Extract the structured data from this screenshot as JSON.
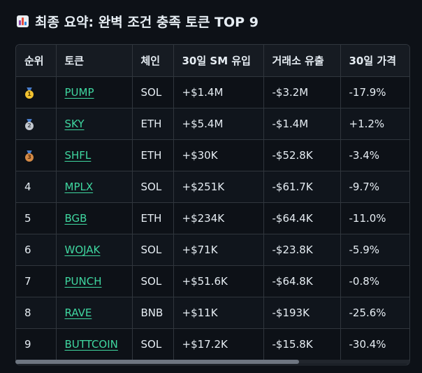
{
  "heading": {
    "icon": "bar-chart-icon",
    "text": "최종 요약: 완벽 조건 충족 토큰 TOP 9"
  },
  "table": {
    "headers": [
      "순위",
      "토큰",
      "체인",
      "30일 SM 유입",
      "거래소 유출",
      "30일 가격"
    ],
    "rows": [
      {
        "rank": "1",
        "medal": "gold",
        "token": "PUMP",
        "chain": "SOL",
        "sm_inflow": "+$1.4M",
        "exchange_outflow": "-$3.2M",
        "price_30d": "-17.9%"
      },
      {
        "rank": "2",
        "medal": "silver",
        "token": "SKY",
        "chain": "ETH",
        "sm_inflow": "+$5.4M",
        "exchange_outflow": "-$1.4M",
        "price_30d": "+1.2%"
      },
      {
        "rank": "3",
        "medal": "bronze",
        "token": "SHFL",
        "chain": "ETH",
        "sm_inflow": "+$30K",
        "exchange_outflow": "-$52.8K",
        "price_30d": "-3.4%"
      },
      {
        "rank": "4",
        "token": "MPLX",
        "chain": "SOL",
        "sm_inflow": "+$251K",
        "exchange_outflow": "-$61.7K",
        "price_30d": "-9.7%"
      },
      {
        "rank": "5",
        "token": "BGB",
        "chain": "ETH",
        "sm_inflow": "+$234K",
        "exchange_outflow": "-$64.4K",
        "price_30d": "-11.0%"
      },
      {
        "rank": "6",
        "token": "WOJAK",
        "chain": "SOL",
        "sm_inflow": "+$71K",
        "exchange_outflow": "-$23.8K",
        "price_30d": "-5.9%"
      },
      {
        "rank": "7",
        "token": "PUNCH",
        "chain": "SOL",
        "sm_inflow": "+$51.6K",
        "exchange_outflow": "-$64.8K",
        "price_30d": "-0.8%"
      },
      {
        "rank": "8",
        "token": "RAVE",
        "chain": "BNB",
        "sm_inflow": "+$11K",
        "exchange_outflow": "-$193K",
        "price_30d": "-25.6%"
      },
      {
        "rank": "9",
        "token": "BUTTCOIN",
        "chain": "SOL",
        "sm_inflow": "+$17.2K",
        "exchange_outflow": "-$15.8K",
        "price_30d": "-30.4%"
      }
    ]
  },
  "colors": {
    "background": "#0d1117",
    "link": "#3fd7a0",
    "border": "#30363d"
  }
}
